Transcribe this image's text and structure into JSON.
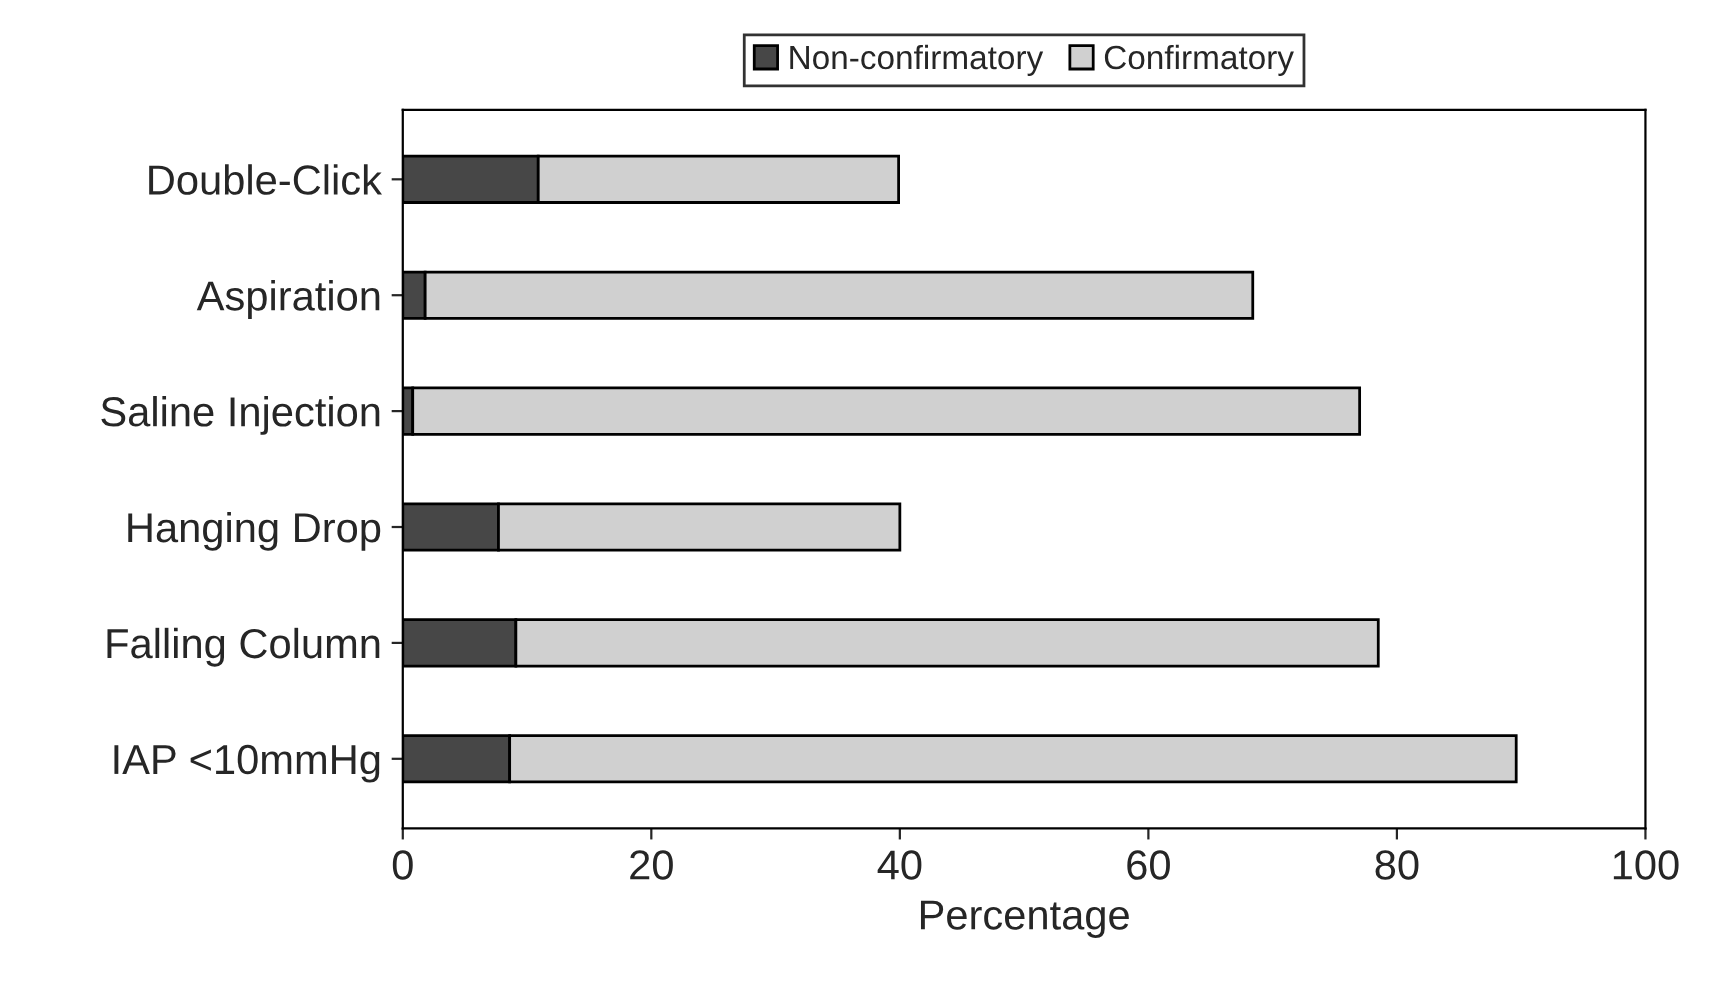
{
  "chart_data": {
    "type": "bar",
    "orientation": "horizontal",
    "stacked": true,
    "xlabel": "Percentage",
    "categories": [
      "Double-Click",
      "Aspiration",
      "Saline Injection",
      "Hanging Drop",
      "Falling Column",
      "IAP <10mmHg"
    ],
    "series": [
      {
        "name": "Non-confirmatory",
        "color": "#474747",
        "values": [
          10.9,
          1.8,
          0.8,
          7.7,
          9.1,
          8.6
        ]
      },
      {
        "name": "Confirmatory",
        "color": "#d0d0d0",
        "values": [
          29.0,
          66.6,
          76.2,
          32.3,
          69.4,
          81.0
        ]
      }
    ],
    "xlim": [
      0,
      100
    ],
    "xticks": [
      0,
      20,
      40,
      60,
      80,
      100
    ],
    "grid": false,
    "legend": "top"
  }
}
